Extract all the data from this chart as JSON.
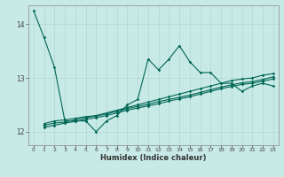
{
  "xlabel": "Humidex (Indice chaleur)",
  "ylabel": "",
  "bg_color": "#c8eae6",
  "grid_color": "#b0d8d4",
  "line_color": "#006655",
  "xlim": [
    -0.5,
    23.5
  ],
  "ylim": [
    11.75,
    14.35
  ],
  "yticks": [
    12,
    13,
    14
  ],
  "xticks": [
    0,
    1,
    2,
    3,
    4,
    5,
    6,
    7,
    8,
    9,
    10,
    11,
    12,
    13,
    14,
    15,
    16,
    17,
    18,
    19,
    20,
    21,
    22,
    23
  ],
  "series1_x": [
    0,
    1,
    2,
    3,
    4,
    5,
    6,
    7,
    8,
    9,
    10,
    11,
    12,
    13,
    14,
    15,
    16,
    17,
    18,
    19,
    20,
    21,
    22,
    23
  ],
  "series1_y": [
    14.25,
    13.75,
    13.2,
    12.2,
    12.2,
    12.2,
    12.0,
    12.2,
    12.3,
    12.5,
    12.6,
    13.35,
    13.15,
    13.35,
    13.6,
    13.3,
    13.1,
    13.1,
    12.9,
    12.9,
    12.75,
    12.85,
    12.9,
    12.85
  ],
  "series2_x": [
    1,
    2,
    3,
    4,
    5,
    6,
    7,
    8,
    9,
    10,
    11,
    12,
    13,
    14,
    15,
    16,
    17,
    18,
    19,
    20,
    21,
    22,
    23
  ],
  "series2_y": [
    12.15,
    12.2,
    12.22,
    12.25,
    12.28,
    12.3,
    12.35,
    12.4,
    12.45,
    12.5,
    12.55,
    12.6,
    12.65,
    12.7,
    12.75,
    12.8,
    12.85,
    12.9,
    12.95,
    12.98,
    13.0,
    13.05,
    13.08
  ],
  "series3_x": [
    1,
    2,
    3,
    4,
    5,
    6,
    7,
    8,
    9,
    10,
    11,
    12,
    13,
    14,
    15,
    16,
    17,
    18,
    19,
    20,
    21,
    22,
    23
  ],
  "series3_y": [
    12.12,
    12.16,
    12.18,
    12.22,
    12.26,
    12.29,
    12.33,
    12.38,
    12.43,
    12.47,
    12.51,
    12.56,
    12.6,
    12.64,
    12.68,
    12.73,
    12.78,
    12.83,
    12.87,
    12.91,
    12.93,
    12.97,
    13.02
  ],
  "series4_x": [
    1,
    2,
    3,
    4,
    5,
    6,
    7,
    8,
    9,
    10,
    11,
    12,
    13,
    14,
    15,
    16,
    17,
    18,
    19,
    20,
    21,
    22,
    23
  ],
  "series4_y": [
    12.08,
    12.12,
    12.16,
    12.19,
    12.23,
    12.26,
    12.3,
    12.35,
    12.4,
    12.44,
    12.48,
    12.52,
    12.57,
    12.61,
    12.65,
    12.7,
    12.75,
    12.8,
    12.84,
    12.88,
    12.9,
    12.94,
    12.98
  ]
}
